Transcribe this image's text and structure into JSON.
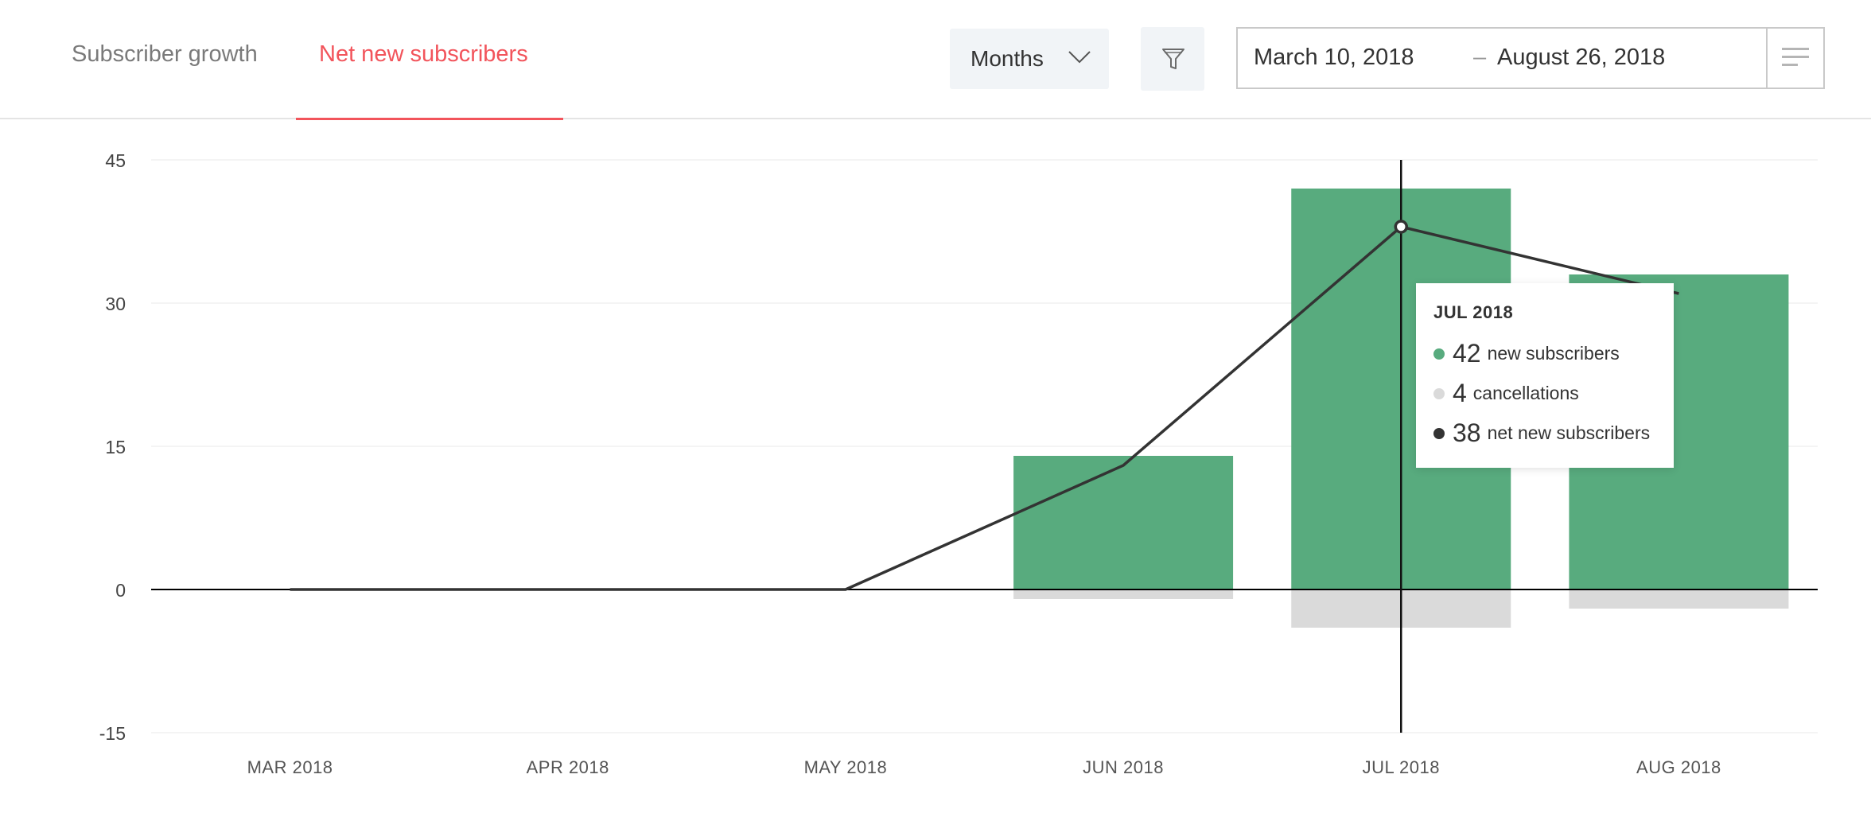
{
  "tabs": {
    "growth": "Subscriber growth",
    "net": "Net new subscribers"
  },
  "controls": {
    "period": "Months",
    "date_start": "March 10, 2018",
    "date_sep": "–",
    "date_end": "August 26, 2018"
  },
  "colors": {
    "accent": "#f2545b",
    "new": "#58ab7e",
    "cancel": "#dadada",
    "net": "#333333"
  },
  "chart_data": {
    "type": "bar",
    "categories": [
      "MAR 2018",
      "APR 2018",
      "MAY 2018",
      "JUN 2018",
      "JUL 2018",
      "AUG 2018"
    ],
    "series": [
      {
        "name": "new subscribers",
        "type": "bar",
        "values": [
          0,
          0,
          0,
          14,
          42,
          33
        ]
      },
      {
        "name": "cancellations",
        "type": "bar",
        "values": [
          0,
          0,
          0,
          -1,
          -4,
          -2
        ]
      },
      {
        "name": "net new subscribers",
        "type": "line",
        "values": [
          0,
          0,
          0,
          13,
          38,
          31
        ]
      }
    ],
    "yticks": [
      45,
      30,
      15,
      0,
      -15
    ],
    "ylim": [
      -15,
      45
    ],
    "highlight_index": 4,
    "tooltip": {
      "title": "JUL 2018",
      "rows": [
        {
          "value": "42",
          "label": "new subscribers"
        },
        {
          "value": "4",
          "label": "cancellations"
        },
        {
          "value": "38",
          "label": "net new subscribers"
        }
      ]
    }
  }
}
